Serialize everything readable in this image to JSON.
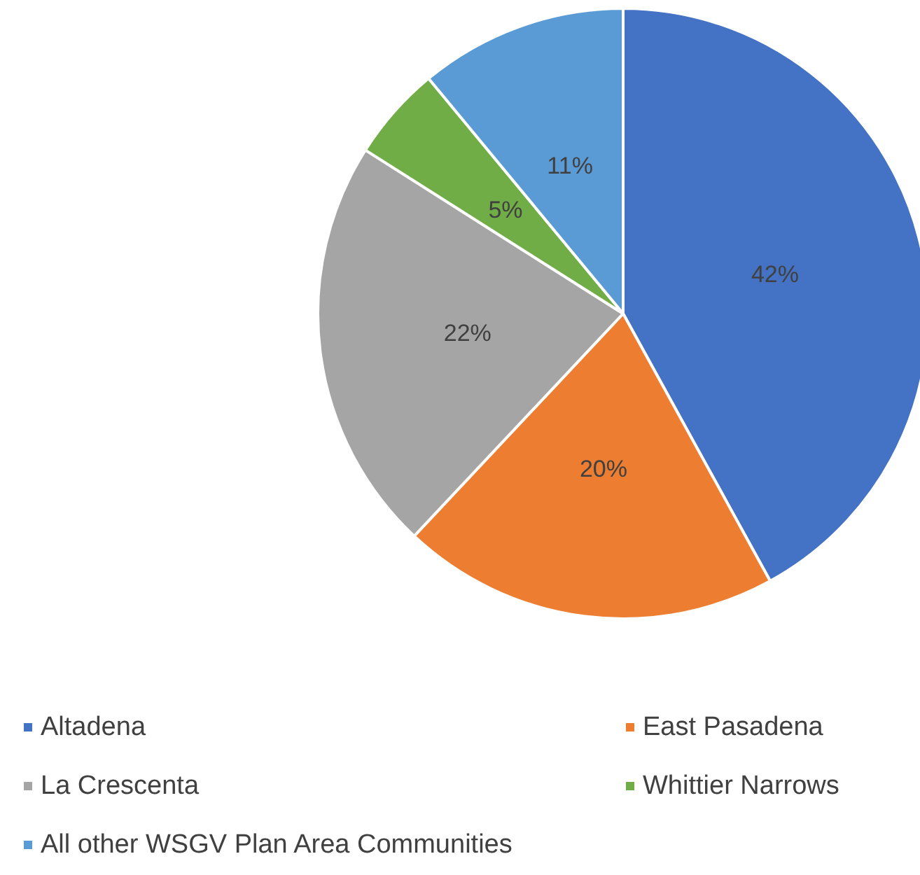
{
  "chart_data": {
    "type": "pie",
    "categories": [
      "Altadena",
      "East Pasadena",
      "La Crescenta",
      "Whittier Narrows",
      "All other WSGV Plan Area Communities"
    ],
    "values": [
      42,
      20,
      22,
      5,
      11
    ],
    "colors": [
      "#4472c4",
      "#ed7d31",
      "#a5a5a5",
      "#70ad47",
      "#5b9bd5"
    ],
    "value_labels": [
      "42%",
      "20%",
      "22%",
      "5%",
      "11%"
    ],
    "legend": "bottom"
  }
}
